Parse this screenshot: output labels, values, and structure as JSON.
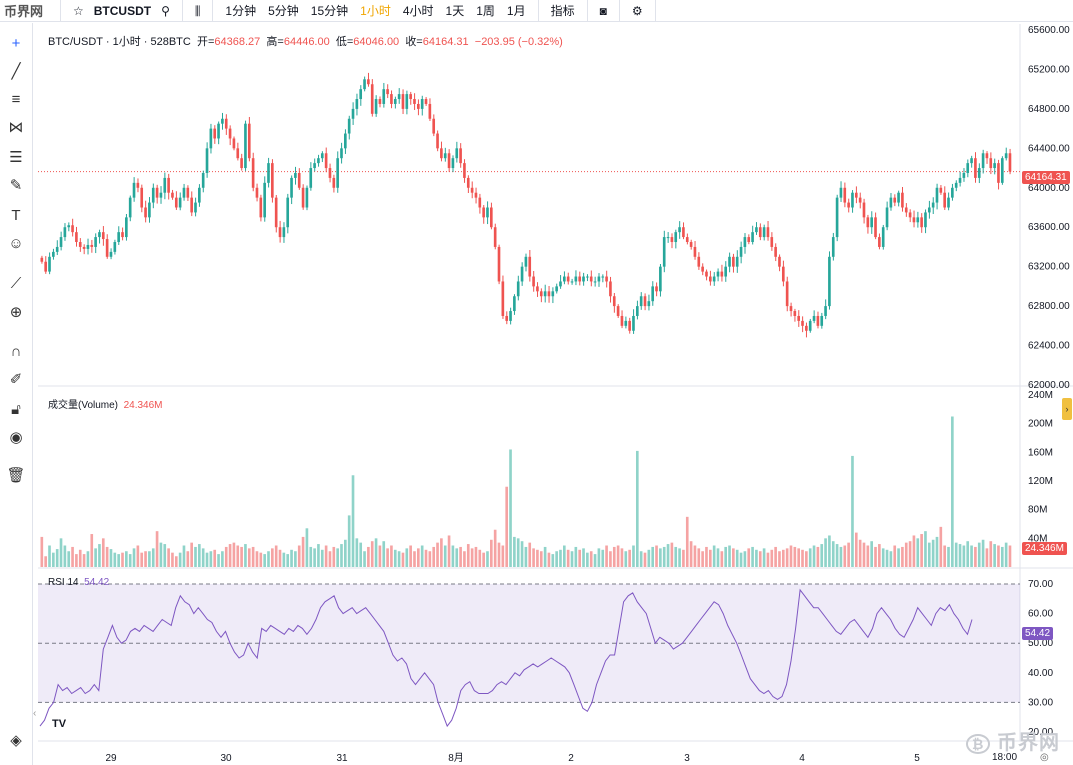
{
  "topbar": {
    "logo": "币界网",
    "symbol": "BTCUSDT",
    "intervals": [
      "1分钟",
      "5分钟",
      "15分钟",
      "1小时",
      "4小时",
      "1天",
      "1周",
      "1月"
    ],
    "active_interval": "1小时",
    "indicators_label": "指标"
  },
  "legend": {
    "title": "BTC/USDT · 1小时 · 528BTC",
    "open_label": "开=",
    "open": "64368.27",
    "high_label": "高=",
    "high": "64446.00",
    "low_label": "低=",
    "low": "64046.00",
    "close_label": "收=",
    "close": "64164.31",
    "change": "−203.95 (−0.32%)"
  },
  "volume_legend": {
    "name": "成交量(Volume)",
    "value": "24.346M"
  },
  "rsi_legend": {
    "name": "RSI",
    "period": "14",
    "value": "54.42"
  },
  "price_badge": "64164.31",
  "volume_badge": "24.346M",
  "rsi_badge": "54.42",
  "time_axis": {
    "extra_label": "18:00"
  },
  "watermark": "币界网",
  "colors": {
    "up": "#26a69a",
    "down": "#ef5350",
    "rsi": "#7e57c2",
    "accent": "#f0a500"
  },
  "chart_data": [
    {
      "type": "candlestick",
      "title": "BTC/USDT · 1小时 · 528BTC",
      "ylim": [
        62000,
        65600
      ],
      "yticks": [
        62000,
        62400,
        62800,
        63200,
        63600,
        64000,
        64400,
        64800,
        65200,
        65600
      ],
      "x_tick_labels": [
        "29",
        "30",
        "31",
        "8月",
        "2",
        "3",
        "4",
        "5"
      ],
      "last_price": 64164.31,
      "closes": [
        63250,
        63150,
        63300,
        63350,
        63400,
        63500,
        63600,
        63620,
        63550,
        63450,
        63400,
        63380,
        63420,
        63400,
        63500,
        63550,
        63480,
        63300,
        63350,
        63450,
        63550,
        63500,
        63700,
        63900,
        64050,
        64000,
        63800,
        63700,
        63850,
        64000,
        63900,
        63950,
        64100,
        63950,
        63900,
        63800,
        63900,
        64000,
        63900,
        63750,
        63850,
        64000,
        64150,
        64400,
        64600,
        64500,
        64650,
        64700,
        64600,
        64500,
        64400,
        64300,
        64200,
        64650,
        64300,
        64000,
        63900,
        63700,
        64050,
        64250,
        63900,
        63600,
        63500,
        63600,
        63900,
        64100,
        64150,
        64000,
        63800,
        64000,
        64200,
        64250,
        64300,
        64350,
        64200,
        64100,
        64000,
        64300,
        64400,
        64550,
        64700,
        64800,
        64900,
        65000,
        65100,
        65050,
        64750,
        64900,
        64850,
        65000,
        64950,
        64850,
        64900,
        64950,
        64800,
        64950,
        64900,
        64850,
        64800,
        64900,
        64850,
        64700,
        64550,
        64400,
        64300,
        64350,
        64200,
        64300,
        64400,
        64250,
        64100,
        64000,
        63950,
        63900,
        63800,
        63700,
        63800,
        63600,
        63400,
        63050,
        62700,
        62650,
        62750,
        62900,
        63050,
        63200,
        63300,
        63100,
        63000,
        62950,
        62900,
        62950,
        62900,
        62950,
        63000,
        63050,
        63100,
        63050,
        63050,
        63100,
        63050,
        63100,
        63100,
        63050,
        63050,
        63100,
        63100,
        63050,
        62900,
        62800,
        62700,
        62600,
        62650,
        62550,
        62700,
        62800,
        62900,
        62800,
        62850,
        63000,
        62950,
        63200,
        63500,
        63500,
        63450,
        63550,
        63600,
        63500,
        63450,
        63400,
        63300,
        63200,
        63150,
        63100,
        63050,
        63100,
        63150,
        63100,
        63200,
        63300,
        63200,
        63300,
        63400,
        63500,
        63450,
        63550,
        63600,
        63500,
        63600,
        63500,
        63400,
        63300,
        63200,
        63050,
        62800,
        62750,
        62700,
        62650,
        62600,
        62550,
        62650,
        62700,
        62600,
        62700,
        62800,
        63300,
        63500,
        63900,
        64000,
        63850,
        63800,
        63950,
        63900,
        63850,
        63700,
        63600,
        63700,
        63500,
        63400,
        63600,
        63800,
        63900,
        63850,
        63950,
        63800,
        63750,
        63700,
        63650,
        63700,
        63600,
        63750,
        63800,
        63850,
        64000,
        63950,
        63800,
        63900,
        64000,
        64050,
        64100,
        64150,
        64250,
        64300,
        64100,
        64200,
        64350,
        64300,
        64200,
        64250,
        64050,
        64300,
        64350,
        64164
      ]
    },
    {
      "type": "bar",
      "title": "成交量(Volume)",
      "ylim": [
        0,
        240
      ],
      "yticks": [
        40,
        80,
        120,
        160,
        200,
        240
      ],
      "ytick_labels": [
        "40M",
        "80M",
        "120M",
        "160M",
        "200M",
        "240M"
      ],
      "last_value": "24.346M",
      "values": [
        42,
        15,
        30,
        20,
        25,
        40,
        30,
        22,
        28,
        18,
        24,
        18,
        22,
        46,
        26,
        32,
        40,
        28,
        25,
        20,
        18,
        20,
        22,
        18,
        26,
        30,
        20,
        22,
        22,
        26,
        50,
        34,
        32,
        26,
        20,
        15,
        20,
        30,
        22,
        34,
        28,
        32,
        26,
        20,
        22,
        24,
        18,
        22,
        28,
        32,
        34,
        30,
        28,
        32,
        26,
        28,
        22,
        20,
        18,
        22,
        26,
        30,
        24,
        20,
        18,
        24,
        22,
        30,
        42,
        54,
        28,
        26,
        32,
        24,
        30,
        22,
        28,
        26,
        32,
        38,
        72,
        128,
        40,
        34,
        22,
        28,
        36,
        40,
        30,
        36,
        26,
        30,
        24,
        22,
        20,
        26,
        30,
        22,
        26,
        30,
        24,
        22,
        28,
        34,
        40,
        30,
        44,
        30,
        26,
        28,
        22,
        32,
        26,
        28,
        24,
        20,
        22,
        38,
        52,
        34,
        30,
        112,
        164,
        42,
        40,
        36,
        28,
        34,
        26,
        24,
        22,
        28,
        20,
        18,
        22,
        24,
        30,
        24,
        22,
        28,
        24,
        26,
        20,
        22,
        18,
        26,
        24,
        30,
        22,
        28,
        30,
        26,
        22,
        24,
        30,
        26,
        22,
        20,
        24,
        28,
        30,
        26,
        28,
        32,
        34,
        28,
        26,
        24,
        70,
        36,
        30,
        26,
        22,
        28,
        24,
        30,
        26,
        22,
        28,
        30,
        26,
        24,
        20,
        22,
        26,
        28,
        24,
        22,
        26,
        20,
        24,
        28,
        22,
        24,
        26,
        30,
        28,
        26,
        24,
        22,
        26,
        30,
        28,
        32,
        40,
        44,
        36,
        32,
        28,
        30,
        34,
        40,
        48,
        38,
        34,
        30,
        36,
        28,
        32,
        26,
        24,
        22,
        30,
        26,
        28,
        34,
        36,
        44,
        40,
        46,
        50,
        34,
        38,
        42,
        56,
        30,
        28,
        36,
        34,
        32,
        30,
        36,
        30,
        28,
        34,
        38,
        26,
        36,
        32,
        30,
        28,
        34,
        30,
        26,
        32,
        30,
        28,
        36,
        38,
        42,
        40,
        44,
        48,
        38,
        34,
        40,
        50,
        46,
        36,
        42,
        38,
        34,
        40,
        30,
        32,
        28,
        36,
        42,
        38,
        24
      ],
      "peaks": [
        {
          "index": 172,
          "value": 162
        },
        {
          "index": 234,
          "value": 155
        },
        {
          "index": 262,
          "value": 210
        },
        {
          "index": 280,
          "value": 228
        },
        {
          "index": 472,
          "value": 150
        }
      ]
    },
    {
      "type": "line",
      "title": "RSI 14",
      "ylim": [
        20,
        70
      ],
      "yticks": [
        20,
        30,
        40,
        50,
        60,
        70
      ],
      "bands": [
        30,
        50,
        70
      ],
      "last_value": 54.42,
      "values": [
        22,
        24,
        28,
        30,
        36,
        34,
        35,
        33,
        34,
        35,
        33,
        34,
        36,
        34,
        48,
        52,
        56,
        52,
        50,
        51,
        54,
        55,
        54,
        56,
        55,
        54,
        56,
        58,
        57,
        56,
        62,
        66,
        64,
        63,
        60,
        62,
        60,
        58,
        57,
        54,
        52,
        54,
        50,
        47,
        45,
        46,
        50,
        47,
        45,
        55,
        54,
        56,
        55,
        54,
        53,
        55,
        54,
        56,
        55,
        53,
        55,
        58,
        62,
        64,
        65,
        66,
        62,
        60,
        61,
        62,
        60,
        61,
        62,
        60,
        58,
        56,
        54,
        50,
        46,
        44,
        45,
        43,
        38,
        36,
        38,
        40,
        38,
        36,
        30,
        26,
        22,
        24,
        28,
        34,
        36,
        37,
        34,
        33,
        33,
        33,
        34,
        36,
        37,
        36,
        38,
        40,
        39,
        41,
        42,
        43,
        42,
        43,
        44,
        45,
        44,
        43,
        42,
        40,
        36,
        32,
        28,
        27,
        30,
        36,
        40,
        44,
        46,
        46,
        55,
        64,
        66,
        67,
        64,
        62,
        60,
        55,
        50,
        52,
        51,
        50,
        48,
        49,
        50,
        52,
        54,
        56,
        58,
        60,
        62,
        64,
        63,
        60,
        56,
        53,
        50,
        46,
        42,
        38,
        36,
        34,
        33,
        34,
        32,
        31,
        32,
        36,
        44,
        55,
        68,
        66,
        64,
        62,
        62,
        60,
        58,
        56,
        54,
        53,
        55,
        57,
        58,
        56,
        54,
        52,
        55,
        60,
        62,
        60,
        58,
        55,
        53,
        52,
        55,
        58,
        62,
        60,
        58,
        56,
        60,
        62,
        61,
        63,
        60,
        58,
        55,
        53,
        58
      ]
    }
  ]
}
